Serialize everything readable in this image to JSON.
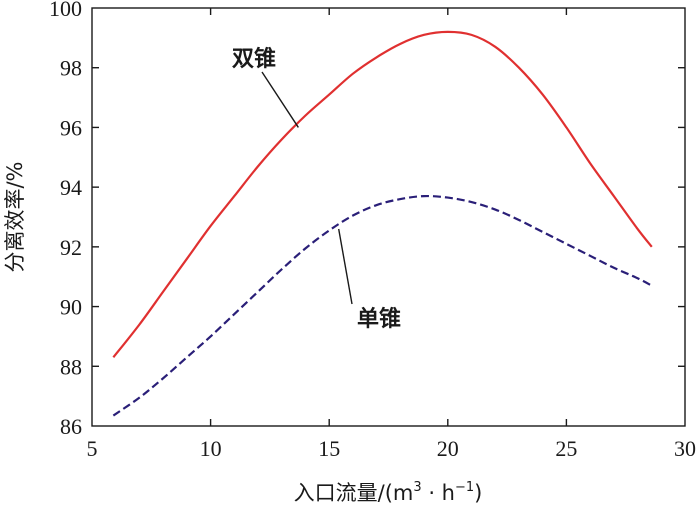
{
  "chart_data": {
    "type": "line",
    "title": "",
    "xlabel": "入口流量/(m³・h⁻¹)",
    "xlabel_parts": {
      "main": "入口流量/(m",
      "sup1": "3",
      "mid": " · h",
      "sup2": "−1",
      "end": ")"
    },
    "ylabel": "分离效率/%",
    "xlim": [
      5,
      30
    ],
    "ylim": [
      86,
      100
    ],
    "xticks": [
      5,
      10,
      15,
      20,
      25,
      30
    ],
    "yticks": [
      86,
      88,
      90,
      92,
      94,
      96,
      98,
      100
    ],
    "grid": false,
    "legend": "inline labels",
    "series": [
      {
        "name": "双锥",
        "color": "#e03030",
        "dash": "solid",
        "x": [
          5.9,
          7,
          8,
          9,
          10,
          11,
          12,
          13,
          14,
          15,
          16,
          17,
          18,
          19,
          20,
          21,
          22,
          23,
          24,
          25,
          26,
          27,
          28,
          28.6
        ],
        "y": [
          88.3,
          89.4,
          90.5,
          91.6,
          92.7,
          93.7,
          94.7,
          95.6,
          96.4,
          97.1,
          97.8,
          98.35,
          98.8,
          99.1,
          99.2,
          99.1,
          98.7,
          98.0,
          97.1,
          96.0,
          94.8,
          93.7,
          92.6,
          92.0
        ],
        "label_anchor": {
          "x": 13.7,
          "y": 96.0
        }
      },
      {
        "name": "单锥",
        "color": "#2a1f78",
        "dash": "dashed",
        "x": [
          5.9,
          7,
          8,
          9,
          10,
          11,
          12,
          13,
          14,
          15,
          16,
          17,
          18,
          19,
          20,
          21,
          22,
          23,
          24,
          25,
          26,
          27,
          28,
          28.6
        ],
        "y": [
          86.35,
          86.95,
          87.6,
          88.3,
          89.0,
          89.75,
          90.5,
          91.25,
          91.95,
          92.55,
          93.05,
          93.4,
          93.6,
          93.7,
          93.65,
          93.5,
          93.25,
          92.9,
          92.5,
          92.1,
          91.7,
          91.3,
          90.95,
          90.7
        ],
        "label_anchor": {
          "x": 15.4,
          "y": 92.6
        }
      }
    ]
  }
}
